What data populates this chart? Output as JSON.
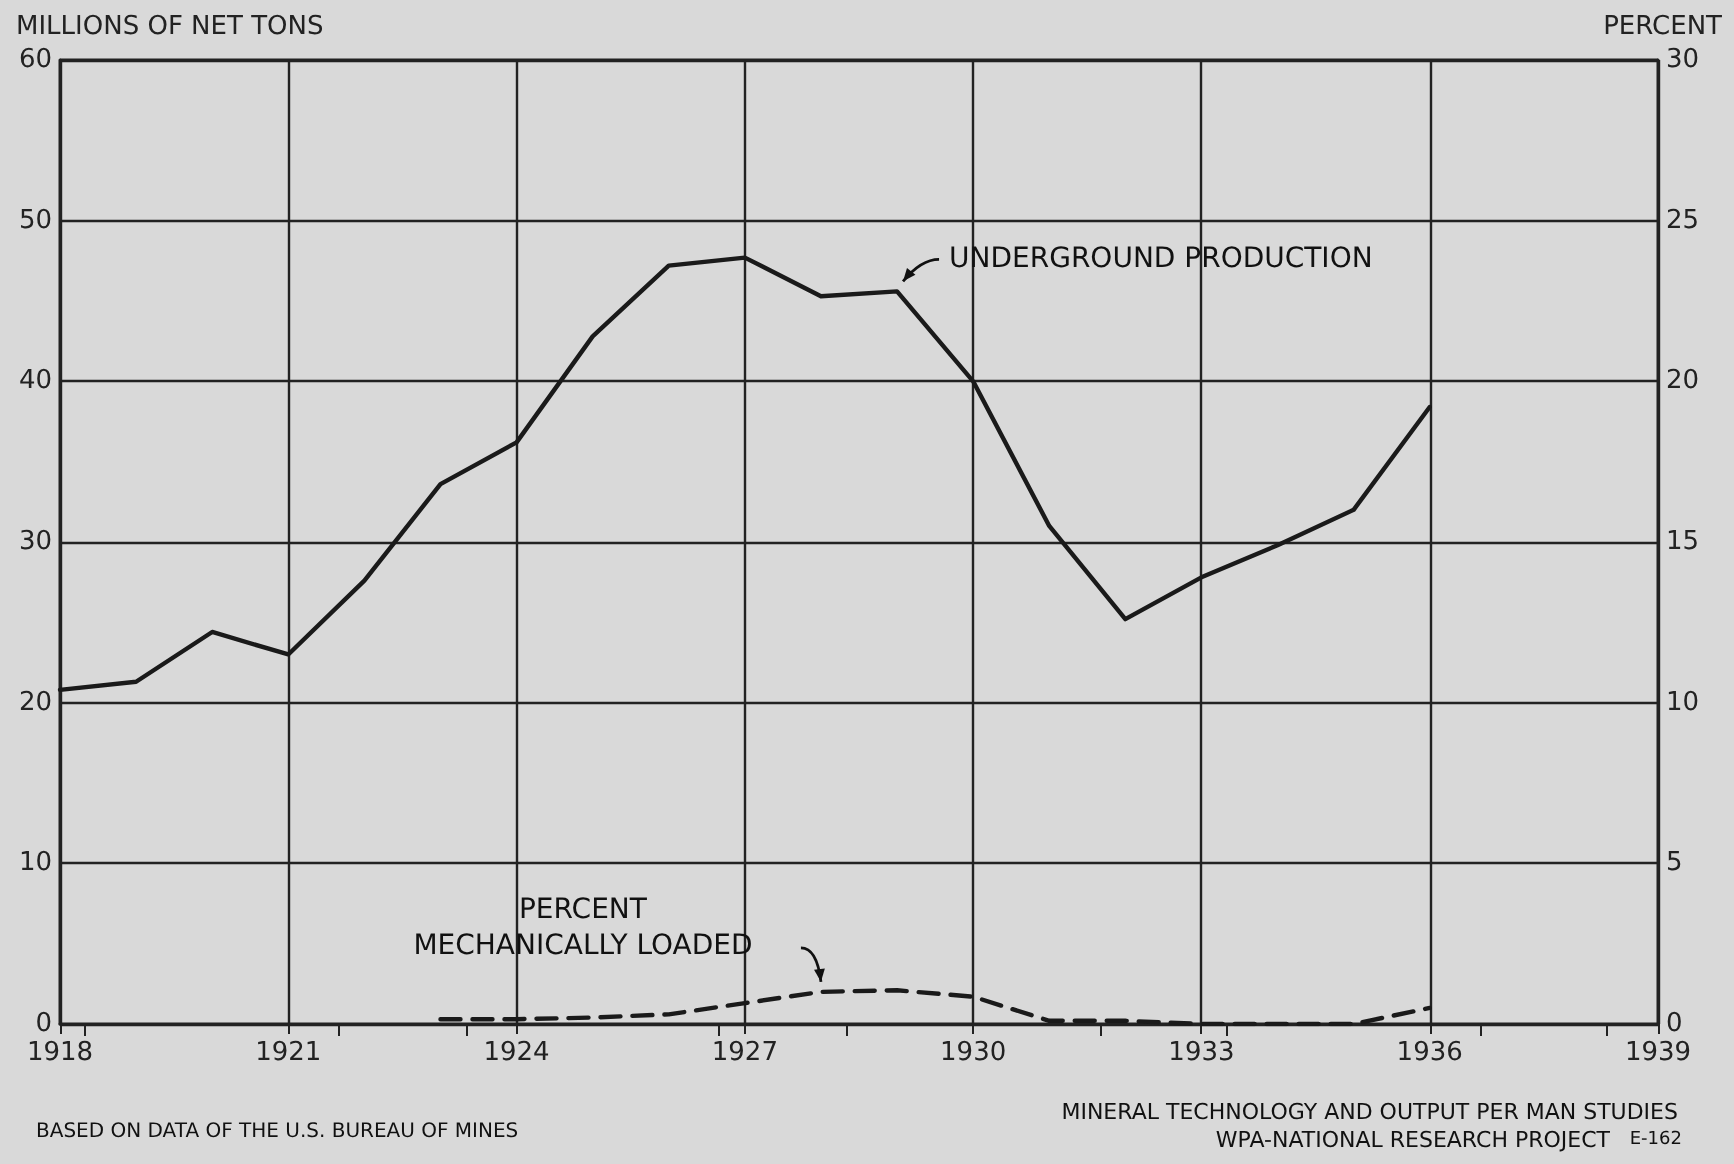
{
  "chart_data": {
    "type": "line",
    "ylabel": "MILLIONS OF NET TONS",
    "y2label": "PERCENT",
    "x": [
      1918,
      1919,
      1920,
      1921,
      1922,
      1923,
      1924,
      1925,
      1926,
      1927,
      1928,
      1929,
      1930,
      1931,
      1932,
      1933,
      1934,
      1935,
      1936
    ],
    "series": [
      {
        "name": "UNDERGROUND PRODUCTION",
        "color": "#1a1a1a",
        "line_style": "solid",
        "values": [
          20.8,
          21.3,
          24.4,
          23.0,
          27.6,
          33.6,
          36.2,
          42.8,
          47.2,
          47.7,
          45.3,
          45.6,
          40.0,
          31.0,
          25.2,
          27.8,
          29.8,
          32.0,
          38.4
        ]
      },
      {
        "name": "PERCENT MECHANICALLY LOADED",
        "color": "#1a1a1a",
        "line_style": "dashed",
        "axis": "y2",
        "x": [
          1923,
          1924,
          1925,
          1926,
          1927,
          1928,
          1929,
          1930,
          1931,
          1932,
          1933,
          1934,
          1935,
          1936
        ],
        "values": [
          0.15,
          0.15,
          0.2,
          0.3,
          0.65,
          1.0,
          1.05,
          0.85,
          0.1,
          0.1,
          0.0,
          0.0,
          0.0,
          0.5
        ]
      }
    ],
    "annotations": [
      "BASED ON DATA OF THE U.S. BUREAU OF MINES",
      "MINERAL TECHNOLOGY AND OUTPUT PER MAN STUDIES",
      "WPA-NATIONAL RESEARCH PROJECT",
      "E-162"
    ],
    "xlim": [
      1918,
      1939
    ],
    "xticks": [
      1918,
      1921,
      1924,
      1927,
      1930,
      1933,
      1936,
      1939
    ],
    "ylim": [
      0,
      60
    ],
    "yticks": [
      0,
      10,
      20,
      30,
      40,
      50,
      60
    ],
    "y2lim": [
      0,
      30
    ],
    "y2ticks": [
      0,
      5,
      10,
      15,
      20,
      25,
      30
    ],
    "grid": true,
    "marker": "none"
  }
}
